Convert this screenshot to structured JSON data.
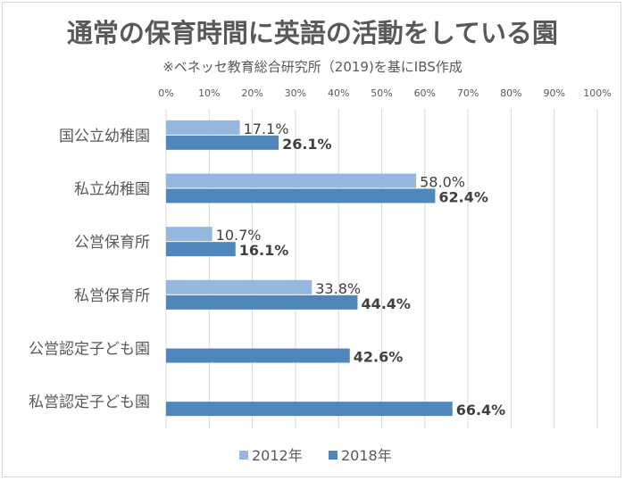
{
  "chart_data": {
    "type": "bar",
    "orientation": "horizontal",
    "title": "通常の保育時間に英語の活動をしている園",
    "subtitle": "※ベネッセ教育総合研究所（2019)を基にIBS作成",
    "categories": [
      "国公立幼稚園",
      "私立幼稚園",
      "公営保育所",
      "私営保育所",
      "公営認定子ども園",
      "私営認定子ども園"
    ],
    "series": [
      {
        "name": "2012年",
        "color": "#95b8de",
        "values": [
          17.1,
          58.0,
          10.7,
          33.8,
          null,
          null
        ],
        "labels": [
          "17.1%",
          "58.0%",
          "10.7%",
          "33.8%",
          null,
          null
        ]
      },
      {
        "name": "2018年",
        "color": "#4f87bd",
        "values": [
          26.1,
          62.4,
          16.1,
          44.4,
          42.6,
          66.4
        ],
        "labels": [
          "26.1%",
          "62.4%",
          "16.1%",
          "44.4%",
          "42.6%",
          "66.4%"
        ]
      }
    ],
    "xlim": [
      0,
      100
    ],
    "xticks": [
      "0%",
      "10%",
      "20%",
      "30%",
      "40%",
      "50%",
      "60%",
      "70%",
      "80%",
      "90%",
      "100%"
    ],
    "xaxis_position": "top",
    "grid": true,
    "legend": "bottom"
  }
}
